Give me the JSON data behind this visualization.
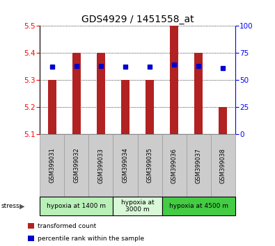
{
  "title": "GDS4929 / 1451558_at",
  "samples": [
    "GSM399031",
    "GSM399032",
    "GSM399033",
    "GSM399034",
    "GSM399035",
    "GSM399036",
    "GSM399037",
    "GSM399038"
  ],
  "bar_bottoms": [
    5.1,
    5.1,
    5.1,
    5.1,
    5.1,
    5.1,
    5.1,
    5.1
  ],
  "bar_tops": [
    5.3,
    5.4,
    5.4,
    5.3,
    5.3,
    5.5,
    5.4,
    5.2
  ],
  "percentile_pct": [
    62,
    63,
    63,
    62,
    62,
    64,
    63,
    61
  ],
  "ylim": [
    5.1,
    5.5
  ],
  "yticks_left": [
    5.1,
    5.2,
    5.3,
    5.4,
    5.5
  ],
  "yticks_right": [
    0,
    25,
    50,
    75,
    100
  ],
  "bar_color": "#b22222",
  "dot_color": "#0000cc",
  "groups": [
    {
      "label": "hypoxia at 1400 m",
      "start": 0,
      "end": 3,
      "color": "#b8f0b8"
    },
    {
      "label": "hypoxia at\n3000 m",
      "start": 3,
      "end": 5,
      "color": "#d8f8d8"
    },
    {
      "label": "hypoxia at 4500 m",
      "start": 5,
      "end": 8,
      "color": "#44cc44"
    }
  ],
  "legend_items": [
    {
      "color": "#b22222",
      "label": "transformed count"
    },
    {
      "color": "#0000cc",
      "label": "percentile rank within the sample"
    }
  ],
  "background_color": "#ffffff",
  "title_fontsize": 10,
  "tick_fontsize": 7.5,
  "bar_width": 0.35
}
